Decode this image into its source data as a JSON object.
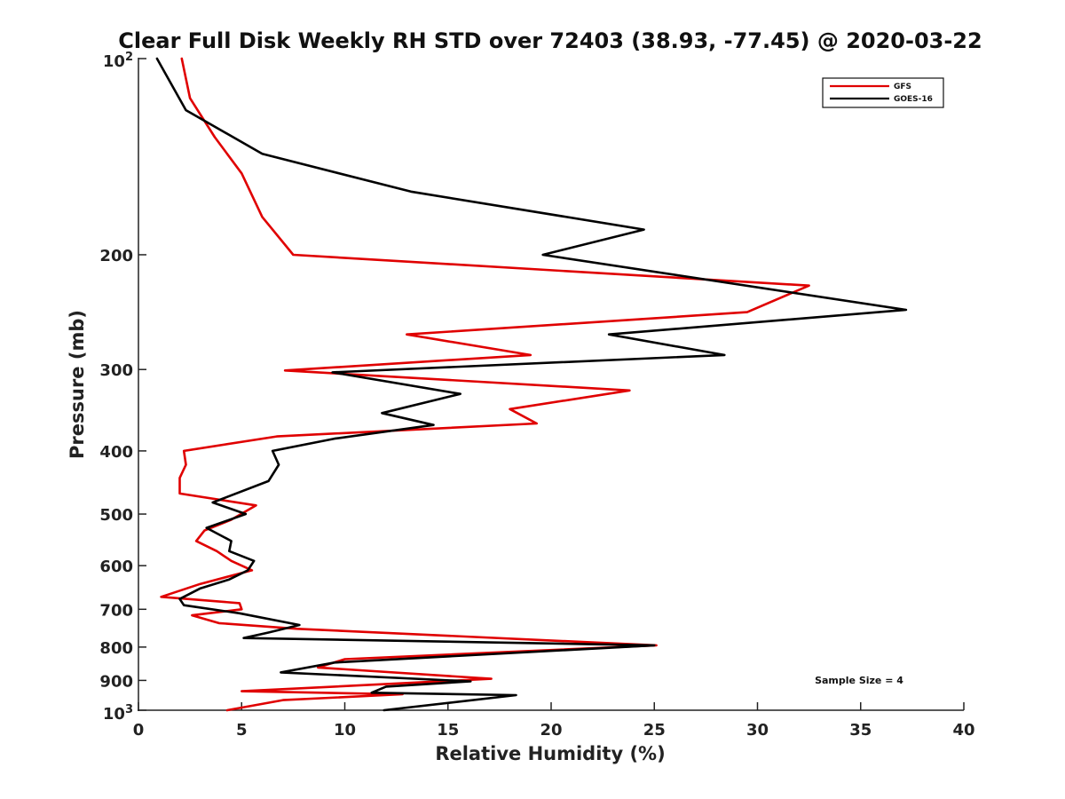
{
  "chart_data": {
    "type": "line",
    "title": "Clear Full Disk Weekly RH STD over 72403 (38.93, -77.45) @ 2020-03-22",
    "xlabel": "Relative Humidity (%)",
    "ylabel": "Pressure (mb)",
    "xlim": [
      0,
      40
    ],
    "ylim": [
      100,
      1000
    ],
    "y_scale": "log",
    "y_reversed": true,
    "x_ticks": [
      0,
      5,
      10,
      15,
      20,
      25,
      30,
      35,
      40
    ],
    "x_tick_labels": [
      "0",
      "5",
      "10",
      "15",
      "20",
      "25",
      "30",
      "35",
      "40"
    ],
    "y_ticks": [
      200,
      300,
      400,
      500,
      600,
      700,
      800,
      900
    ],
    "y_tick_labels": [
      "200",
      "300",
      "400",
      "500",
      "600",
      "700",
      "800",
      "900"
    ],
    "y_tick_top": {
      "base": "10",
      "exp": "2"
    },
    "y_tick_bottom": {
      "base": "10",
      "exp": "3"
    },
    "grid": false,
    "legend_position": "top-right",
    "annotation": "Sample Size = 4",
    "series": [
      {
        "name": "GFS",
        "color": "#e00000",
        "points": [
          [
            2.1,
            100
          ],
          [
            2.5,
            115
          ],
          [
            3.7,
            132
          ],
          [
            5.0,
            150
          ],
          [
            6.0,
            175
          ],
          [
            7.5,
            200
          ],
          [
            32.5,
            223
          ],
          [
            29.5,
            245
          ],
          [
            13.0,
            265
          ],
          [
            19.0,
            285
          ],
          [
            7.1,
            301
          ],
          [
            23.8,
            323
          ],
          [
            18.0,
            345
          ],
          [
            19.3,
            363
          ],
          [
            6.7,
            380
          ],
          [
            2.2,
            400
          ],
          [
            2.3,
            420
          ],
          [
            2.0,
            440
          ],
          [
            2.0,
            465
          ],
          [
            5.7,
            485
          ],
          [
            4.5,
            510
          ],
          [
            3.2,
            530
          ],
          [
            2.8,
            550
          ],
          [
            3.8,
            570
          ],
          [
            4.5,
            590
          ],
          [
            5.5,
            610
          ],
          [
            3.0,
            640
          ],
          [
            1.1,
            670
          ],
          [
            4.9,
            685
          ],
          [
            5.0,
            700
          ],
          [
            2.6,
            715
          ],
          [
            3.9,
            735
          ],
          [
            7.7,
            750
          ],
          [
            25.1,
            795
          ],
          [
            10.0,
            835
          ],
          [
            8.7,
            860
          ],
          [
            17.1,
            895
          ],
          [
            5.0,
            935
          ],
          [
            12.8,
            945
          ],
          [
            7.0,
            965
          ],
          [
            4.3,
            1000
          ]
        ]
      },
      {
        "name": "GOES-16",
        "color": "#000000",
        "points": [
          [
            0.9,
            100
          ],
          [
            2.3,
            120
          ],
          [
            6.0,
            140
          ],
          [
            13.2,
            160
          ],
          [
            24.5,
            183
          ],
          [
            19.6,
            200
          ],
          [
            37.2,
            243
          ],
          [
            22.8,
            265
          ],
          [
            28.4,
            285
          ],
          [
            9.4,
            303
          ],
          [
            15.6,
            327
          ],
          [
            11.8,
            350
          ],
          [
            14.3,
            365
          ],
          [
            9.5,
            383
          ],
          [
            6.5,
            400
          ],
          [
            6.8,
            420
          ],
          [
            6.3,
            445
          ],
          [
            3.6,
            480
          ],
          [
            5.2,
            500
          ],
          [
            3.3,
            525
          ],
          [
            4.5,
            550
          ],
          [
            4.4,
            570
          ],
          [
            5.6,
            590
          ],
          [
            5.3,
            610
          ],
          [
            4.4,
            630
          ],
          [
            3.0,
            650
          ],
          [
            2.0,
            675
          ],
          [
            2.2,
            690
          ],
          [
            4.9,
            710
          ],
          [
            7.8,
            740
          ],
          [
            6.3,
            760
          ],
          [
            5.1,
            775
          ],
          [
            25.0,
            795
          ],
          [
            9.5,
            845
          ],
          [
            6.9,
            875
          ],
          [
            16.1,
            903
          ],
          [
            12.0,
            920
          ],
          [
            11.3,
            940
          ],
          [
            18.3,
            948
          ],
          [
            11.9,
            1000
          ]
        ]
      }
    ]
  }
}
